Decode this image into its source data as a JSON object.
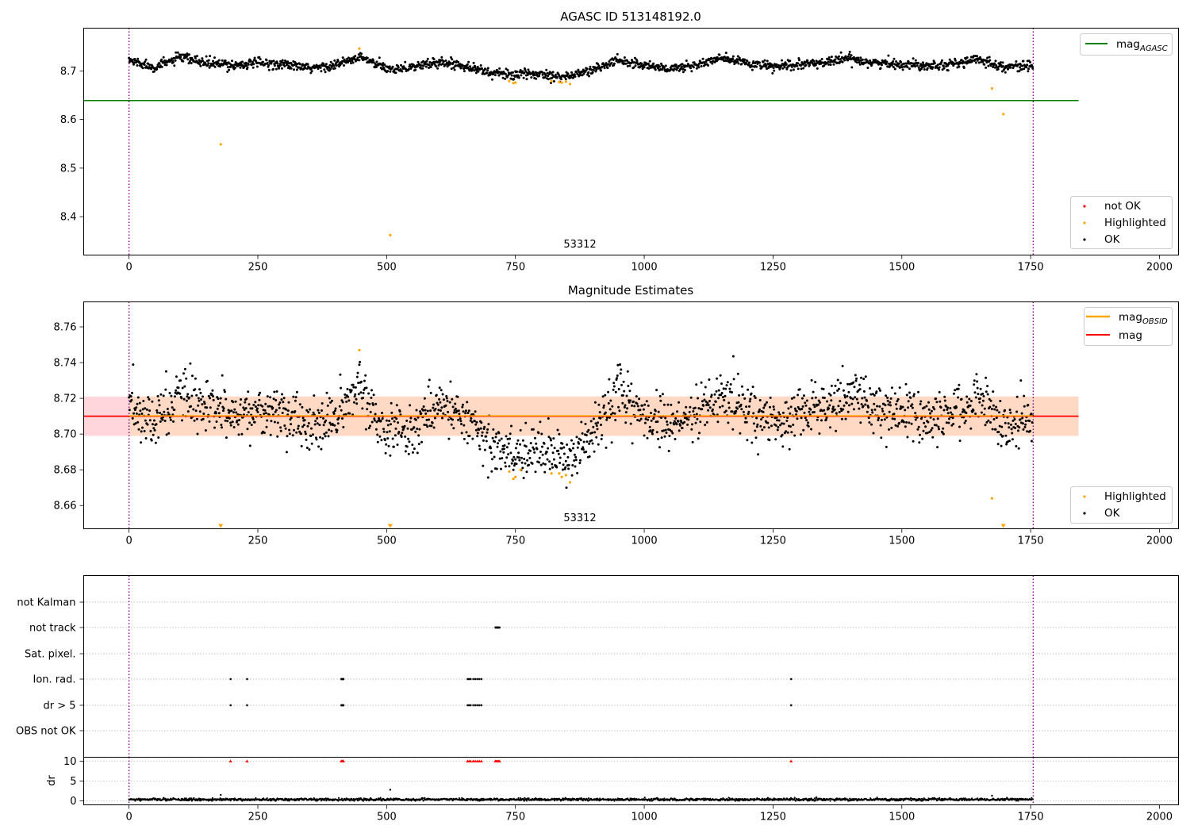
{
  "figure": {
    "panels": [
      {
        "id": "top",
        "title": "AGASC ID 513148192.0",
        "xlim": [
          -88,
          2037
        ],
        "ylim": [
          8.321,
          8.788
        ],
        "yticks": [
          8.4,
          8.5,
          8.6,
          8.7
        ],
        "ytick_labels": [
          "8.4",
          "8.5",
          "8.6",
          "8.7"
        ],
        "obs_label": "53312",
        "legend_lines": [
          {
            "label": "mag",
            "sub": "AGASC",
            "color": "#008000"
          }
        ],
        "legend_points": [
          {
            "label": "not OK",
            "color": "#ff0000"
          },
          {
            "label": "Highlighted",
            "color": "#ffa500"
          },
          {
            "label": "OK",
            "color": "#000000"
          }
        ]
      },
      {
        "id": "middle",
        "title": "Magnitude Estimates",
        "xlim": [
          -88,
          2037
        ],
        "ylim": [
          8.647,
          8.774
        ],
        "yticks": [
          8.66,
          8.68,
          8.7,
          8.72,
          8.74,
          8.76
        ],
        "ytick_labels": [
          "8.66",
          "8.68",
          "8.70",
          "8.72",
          "8.74",
          "8.76"
        ],
        "obs_label": "53312",
        "legend_lines": [
          {
            "label": "mag",
            "sub": "OBSID",
            "color": "#ffa500"
          },
          {
            "label": "mag",
            "sub": "",
            "color": "#ff0000"
          }
        ],
        "legend_points": [
          {
            "label": "Highlighted",
            "color": "#ffa500"
          },
          {
            "label": "OK",
            "color": "#000000"
          }
        ]
      },
      {
        "id": "flags",
        "flag_labels": [
          "not Kalman",
          "not track",
          "Sat. pixel.",
          "Ion. rad.",
          "dr > 5",
          "OBS not OK"
        ]
      },
      {
        "id": "dr",
        "ylabel": "dr",
        "ylim": [
          -1,
          11
        ],
        "yticks": [
          0,
          5,
          10
        ],
        "ytick_labels": [
          "0",
          "5",
          "10"
        ]
      }
    ],
    "xticks": [
      0,
      250,
      500,
      750,
      1000,
      1250,
      1500,
      1750,
      2000
    ],
    "xtick_labels": [
      "0",
      "250",
      "500",
      "750",
      "1000",
      "1250",
      "1500",
      "1750",
      "2000"
    ]
  },
  "chart_data": [
    {
      "type": "scatter",
      "title": "AGASC ID 513148192.0",
      "xlim": [
        -88,
        2037
      ],
      "ylim": [
        8.321,
        8.788
      ],
      "mag_agasc": 8.639,
      "mag_agasc_x_range": [
        -88,
        1843
      ],
      "obsid_boundaries": [
        0,
        1755
      ],
      "obsid": "53312",
      "baseline": [
        [
          0,
          8.722
        ],
        [
          50,
          8.708
        ],
        [
          100,
          8.728
        ],
        [
          150,
          8.716
        ],
        [
          200,
          8.712
        ],
        [
          250,
          8.716
        ],
        [
          300,
          8.714
        ],
        [
          350,
          8.705
        ],
        [
          400,
          8.712
        ],
        [
          450,
          8.728
        ],
        [
          500,
          8.704
        ],
        [
          550,
          8.708
        ],
        [
          600,
          8.718
        ],
        [
          650,
          8.712
        ],
        [
          700,
          8.696
        ],
        [
          750,
          8.692
        ],
        [
          800,
          8.694
        ],
        [
          850,
          8.688
        ],
        [
          900,
          8.702
        ],
        [
          950,
          8.722
        ],
        [
          1000,
          8.712
        ],
        [
          1050,
          8.704
        ],
        [
          1100,
          8.712
        ],
        [
          1150,
          8.726
        ],
        [
          1200,
          8.716
        ],
        [
          1250,
          8.708
        ],
        [
          1300,
          8.712
        ],
        [
          1350,
          8.718
        ],
        [
          1400,
          8.726
        ],
        [
          1450,
          8.716
        ],
        [
          1500,
          8.714
        ],
        [
          1550,
          8.712
        ],
        [
          1600,
          8.714
        ],
        [
          1650,
          8.724
        ],
        [
          1700,
          8.708
        ],
        [
          1755,
          8.712
        ]
      ],
      "scatter_sd": 0.009,
      "n_ok_points": 1755,
      "highlighted": [
        [
          178,
          8.549
        ],
        [
          447,
          8.746
        ],
        [
          507,
          8.362
        ],
        [
          738,
          8.679
        ],
        [
          746,
          8.675
        ],
        [
          750,
          8.676
        ],
        [
          820,
          8.679
        ],
        [
          835,
          8.677
        ],
        [
          840,
          8.676
        ],
        [
          848,
          8.678
        ],
        [
          856,
          8.673
        ],
        [
          1675,
          8.664
        ],
        [
          1697,
          8.611
        ]
      ],
      "not_ok": []
    },
    {
      "type": "scatter",
      "title": "Magnitude Estimates",
      "xlim": [
        -88,
        2037
      ],
      "ylim": [
        8.647,
        8.774
      ],
      "mag": 8.71,
      "band": [
        8.699,
        8.721
      ],
      "band_x_range": [
        -88,
        1843
      ],
      "mag_x_range": [
        -88,
        1843
      ],
      "obsid_boundaries": [
        0,
        1755
      ],
      "obsid": "53312",
      "baseline": [
        [
          0,
          8.716
        ],
        [
          50,
          8.706
        ],
        [
          100,
          8.722
        ],
        [
          150,
          8.713
        ],
        [
          200,
          8.712
        ],
        [
          250,
          8.713
        ],
        [
          300,
          8.712
        ],
        [
          350,
          8.703
        ],
        [
          400,
          8.709
        ],
        [
          450,
          8.726
        ],
        [
          500,
          8.7
        ],
        [
          550,
          8.703
        ],
        [
          600,
          8.716
        ],
        [
          650,
          8.712
        ],
        [
          700,
          8.694
        ],
        [
          750,
          8.688
        ],
        [
          800,
          8.693
        ],
        [
          850,
          8.686
        ],
        [
          900,
          8.7
        ],
        [
          950,
          8.721
        ],
        [
          1000,
          8.711
        ],
        [
          1050,
          8.703
        ],
        [
          1100,
          8.711
        ],
        [
          1150,
          8.722
        ],
        [
          1200,
          8.715
        ],
        [
          1250,
          8.705
        ],
        [
          1300,
          8.711
        ],
        [
          1350,
          8.716
        ],
        [
          1400,
          8.723
        ],
        [
          1450,
          8.715
        ],
        [
          1500,
          8.712
        ],
        [
          1550,
          8.708
        ],
        [
          1600,
          8.713
        ],
        [
          1650,
          8.72
        ],
        [
          1700,
          8.705
        ],
        [
          1755,
          8.71
        ]
      ],
      "scatter_sd": 0.007,
      "n_ok_points": 1755,
      "highlighted": [
        [
          447,
          8.747
        ],
        [
          738,
          8.679
        ],
        [
          746,
          8.675
        ],
        [
          750,
          8.676
        ],
        [
          760,
          8.68
        ],
        [
          820,
          8.678
        ],
        [
          835,
          8.678
        ],
        [
          840,
          8.676
        ],
        [
          848,
          8.677
        ],
        [
          856,
          8.673
        ],
        [
          1675,
          8.664
        ]
      ],
      "highlighted_offscale": [
        178,
        507,
        1697
      ]
    },
    {
      "type": "scatter",
      "title": "",
      "categories": [
        "not Kalman",
        "not track",
        "Sat. pixel.",
        "Ion. rad.",
        "dr > 5",
        "OBS not OK"
      ],
      "flag_x": {
        "not track": [
          711,
          712,
          713,
          714,
          715,
          716,
          717,
          718,
          719
        ],
        "Ion. rad.": [
          197,
          229,
          412,
          413,
          414,
          415,
          416,
          657,
          660,
          663,
          668,
          672,
          676,
          680,
          684,
          1285
        ],
        "dr > 5": [
          197,
          229,
          412,
          413,
          414,
          415,
          416,
          657,
          660,
          663,
          668,
          672,
          676,
          680,
          684,
          1285
        ]
      },
      "obsid_boundaries": [
        0,
        1755
      ]
    },
    {
      "type": "scatter",
      "title": "",
      "ylabel": "dr",
      "ylim": [
        -1,
        11
      ],
      "dr_baseline": 0.35,
      "dr_sd": 0.15,
      "dr_outliers": [
        [
          178,
          1.5
        ],
        [
          507,
          2.8
        ],
        [
          1675,
          1.3
        ]
      ],
      "clipped_at_10": [
        197,
        229,
        412,
        413,
        414,
        415,
        416,
        657,
        660,
        663,
        668,
        672,
        676,
        680,
        684,
        711,
        713,
        715,
        717,
        719,
        1285
      ],
      "obsid_boundaries": [
        0,
        1755
      ]
    }
  ]
}
